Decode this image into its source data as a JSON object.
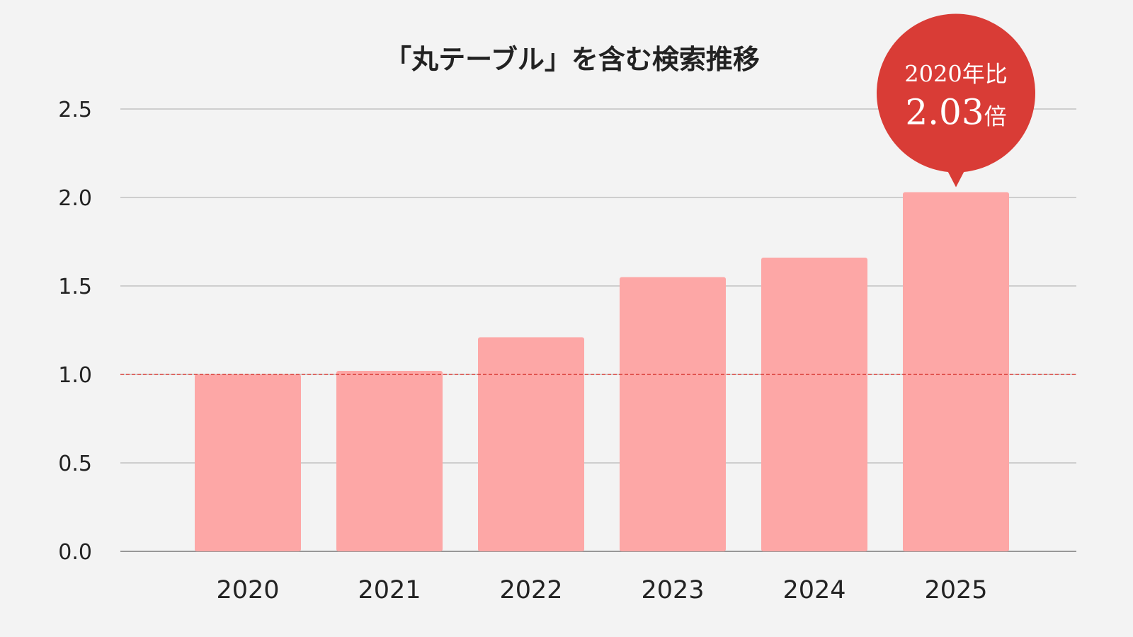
{
  "chart_data": {
    "type": "bar",
    "title": "「丸テーブル」を含む検索推移",
    "xlabel": "",
    "ylabel": "",
    "categories": [
      "2020",
      "2021",
      "2022",
      "2023",
      "2024",
      "2025"
    ],
    "values": [
      1.0,
      1.02,
      1.21,
      1.55,
      1.66,
      2.03
    ],
    "ylim": [
      0,
      2.5
    ],
    "yticks": [
      "0.0",
      "0.5",
      "1.0",
      "1.5",
      "2.0",
      "2.5"
    ],
    "grid": true,
    "reference_line": {
      "value": 1.0,
      "style": "dashed"
    },
    "bar_color": "#fda7a6",
    "reference_color": "#d83a34",
    "callout": {
      "line1": "2020年比",
      "value": "2.03",
      "unit": "倍",
      "color": "#d93c36",
      "target_category": "2025"
    }
  }
}
